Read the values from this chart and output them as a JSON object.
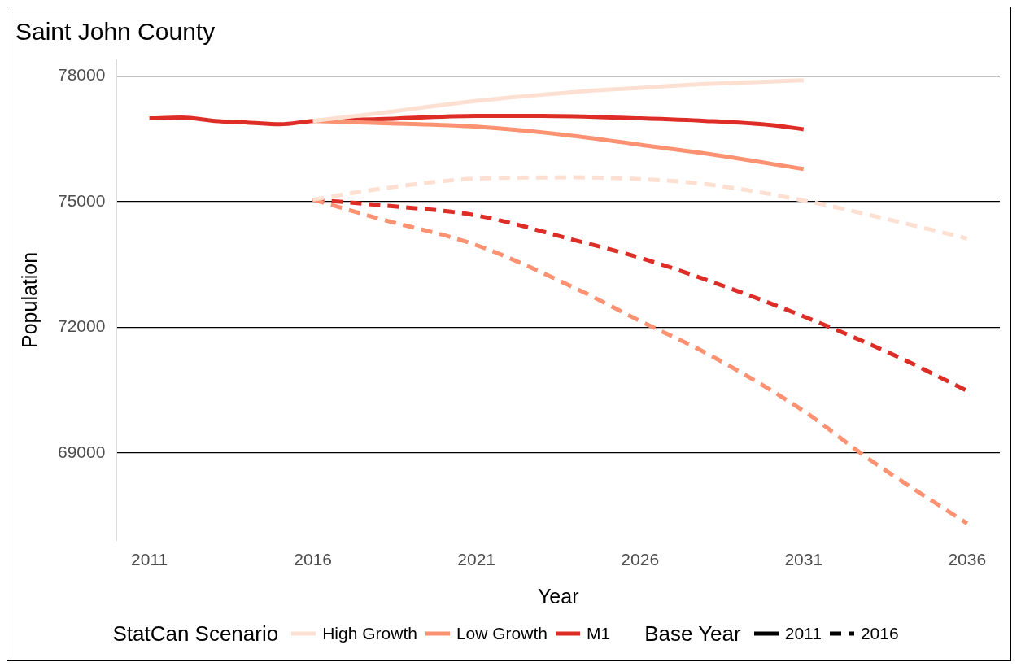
{
  "chart_data": {
    "type": "line",
    "title": "Saint John County",
    "xlabel": "Year",
    "ylabel": "Population",
    "legend_title": "StatCan Scenario",
    "annotations": [
      "Base Year",
      "2011",
      "2016"
    ],
    "xlim": [
      2010,
      2037
    ],
    "xticks": [
      2011,
      2016,
      2021,
      2026,
      2031,
      2036
    ],
    "ylim": [
      66900,
      78400
    ],
    "yticks": [
      69000,
      72000,
      75000,
      78000
    ],
    "grid": "y",
    "legend": "bottom",
    "marker": "none",
    "series": [
      {
        "name": "High Growth",
        "color": "#fee0d2",
        "line_style": "solid",
        "x": [
          2016,
          2018,
          2021,
          2024,
          2026,
          2028,
          2031
        ],
        "values": [
          76930,
          77110,
          77410,
          77620,
          77720,
          77810,
          77900
        ]
      },
      {
        "name": "Low Growth",
        "color": "#fc9272",
        "line_style": "solid",
        "x": [
          2016,
          2018,
          2021,
          2024,
          2026,
          2028,
          2031
        ],
        "values": [
          76930,
          76880,
          76790,
          76570,
          76360,
          76150,
          75780
        ]
      },
      {
        "name": "M1",
        "color": "#de2d26",
        "line_style": "solid",
        "x": [
          2011,
          2012,
          2013,
          2014,
          2015,
          2016,
          2018,
          2021,
          2023,
          2026,
          2028,
          2030,
          2031
        ],
        "values": [
          76990,
          77010,
          76930,
          76890,
          76850,
          76930,
          76970,
          77050,
          77050,
          76990,
          76930,
          76830,
          76730
        ]
      },
      {
        "color": "#fee0d2",
        "line_style": "dashed",
        "x": [
          2016,
          2018,
          2021,
          2024,
          2026,
          2028,
          2031,
          2034,
          2036
        ],
        "values": [
          75050,
          75300,
          75550,
          75580,
          75540,
          75420,
          75030,
          74500,
          74120
        ]
      },
      {
        "color": "#fc9272",
        "line_style": "dashed",
        "x": [
          2016,
          2018,
          2021,
          2024,
          2026,
          2028,
          2031,
          2033,
          2036
        ],
        "values": [
          75050,
          74600,
          73960,
          72940,
          72150,
          71390,
          70000,
          68850,
          67310
        ]
      },
      {
        "color": "#de2d26",
        "line_style": "dashed",
        "x": [
          2016,
          2018,
          2021,
          2024,
          2026,
          2028,
          2031,
          2034,
          2036
        ],
        "values": [
          75050,
          74920,
          74670,
          74080,
          73660,
          73140,
          72260,
          71250,
          70480
        ]
      }
    ]
  }
}
